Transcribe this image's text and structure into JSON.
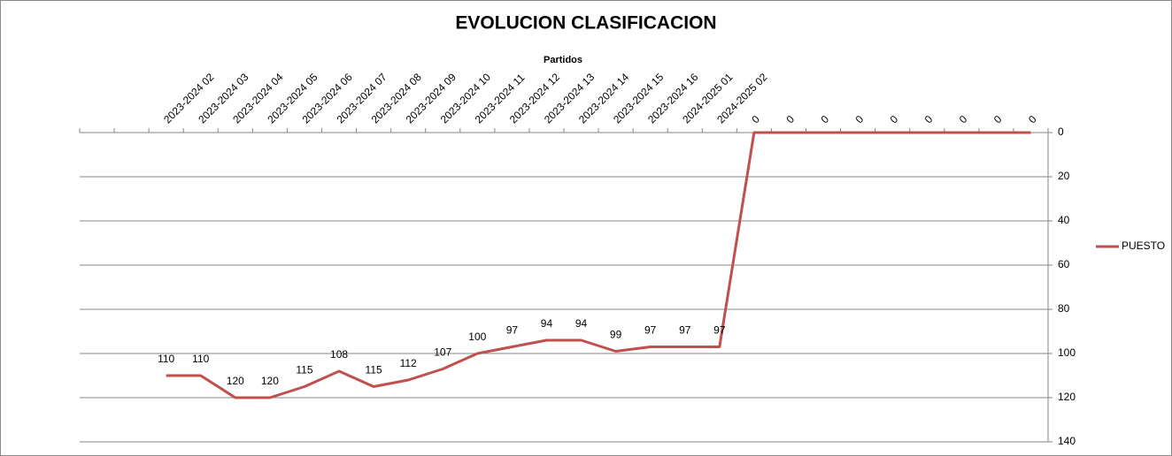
{
  "chart_data": {
    "type": "line",
    "title": "EVOLUCION CLASIFICACION",
    "x_label": "Partidos",
    "categories": [
      null,
      null,
      "2023-2024 02",
      "2023-2024 03",
      "2023-2024 04",
      "2023-2024 05",
      "2023-2024 06",
      "2023-2024 07",
      "2023-2024 08",
      "2023-2024 09",
      "2023-2024 10",
      "2023-2024 11",
      "2023-2024 12",
      "2023-2024 13",
      "2023-2024 14",
      "2023-2024 15",
      "2023-2024 16",
      "2024-2025 01",
      "2024-2025 02",
      "0",
      "0",
      "0",
      "0",
      "0",
      "0",
      "0",
      "0",
      "0"
    ],
    "series": [
      {
        "name": "PUESTO",
        "color": "#c0504d",
        "values": [
          null,
          null,
          110,
          110,
          120,
          120,
          115,
          108,
          115,
          112,
          107,
          100,
          97,
          94,
          94,
          99,
          97,
          97,
          97,
          0,
          0,
          0,
          0,
          0,
          0,
          0,
          0,
          0
        ],
        "value_labels": [
          null,
          null,
          "110",
          "110",
          "120",
          "120",
          "115",
          "108",
          "115",
          "112",
          "107",
          "100",
          "97",
          "94",
          "94",
          "99",
          "97",
          "97",
          "97",
          null,
          null,
          null,
          null,
          null,
          null,
          null,
          null,
          null
        ]
      }
    ],
    "ylim": [
      0,
      140
    ],
    "yticks": [
      0,
      20,
      40,
      60,
      80,
      100,
      120,
      140
    ],
    "y_reversed": true,
    "y_axis_side": "right",
    "x_axis_side": "top",
    "grid": true,
    "legend": "right"
  }
}
